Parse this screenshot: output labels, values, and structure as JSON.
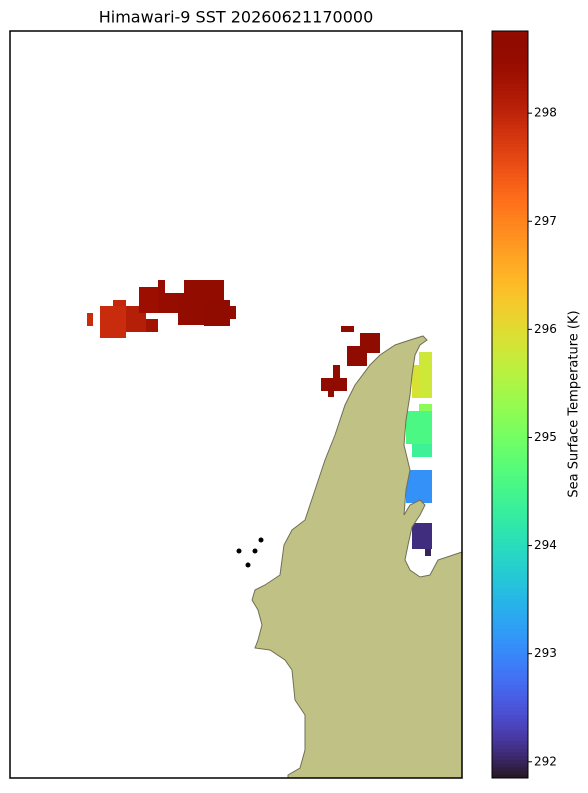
{
  "chart_data": {
    "type": "map",
    "title": "Himawari-9 SST 20260621170000",
    "colorbar_label": "Sea Surface Temperature (K)",
    "colormap": "turbo",
    "clim": [
      291.85,
      298.76
    ],
    "cticks": [
      292,
      293,
      294,
      295,
      296,
      297,
      298
    ],
    "land_color": "#c0c184",
    "values": [
      297.9,
      297.9,
      297.95,
      298.1,
      298.4,
      298.3,
      298.5,
      298.5,
      298.6,
      298.6,
      298.65,
      298.6,
      298.7,
      298.7,
      298.7,
      298.7,
      298.7,
      298.7,
      295.8,
      295.9,
      294.6,
      295.2,
      294.4,
      293.2,
      293.1,
      292.1,
      292.0
    ]
  }
}
